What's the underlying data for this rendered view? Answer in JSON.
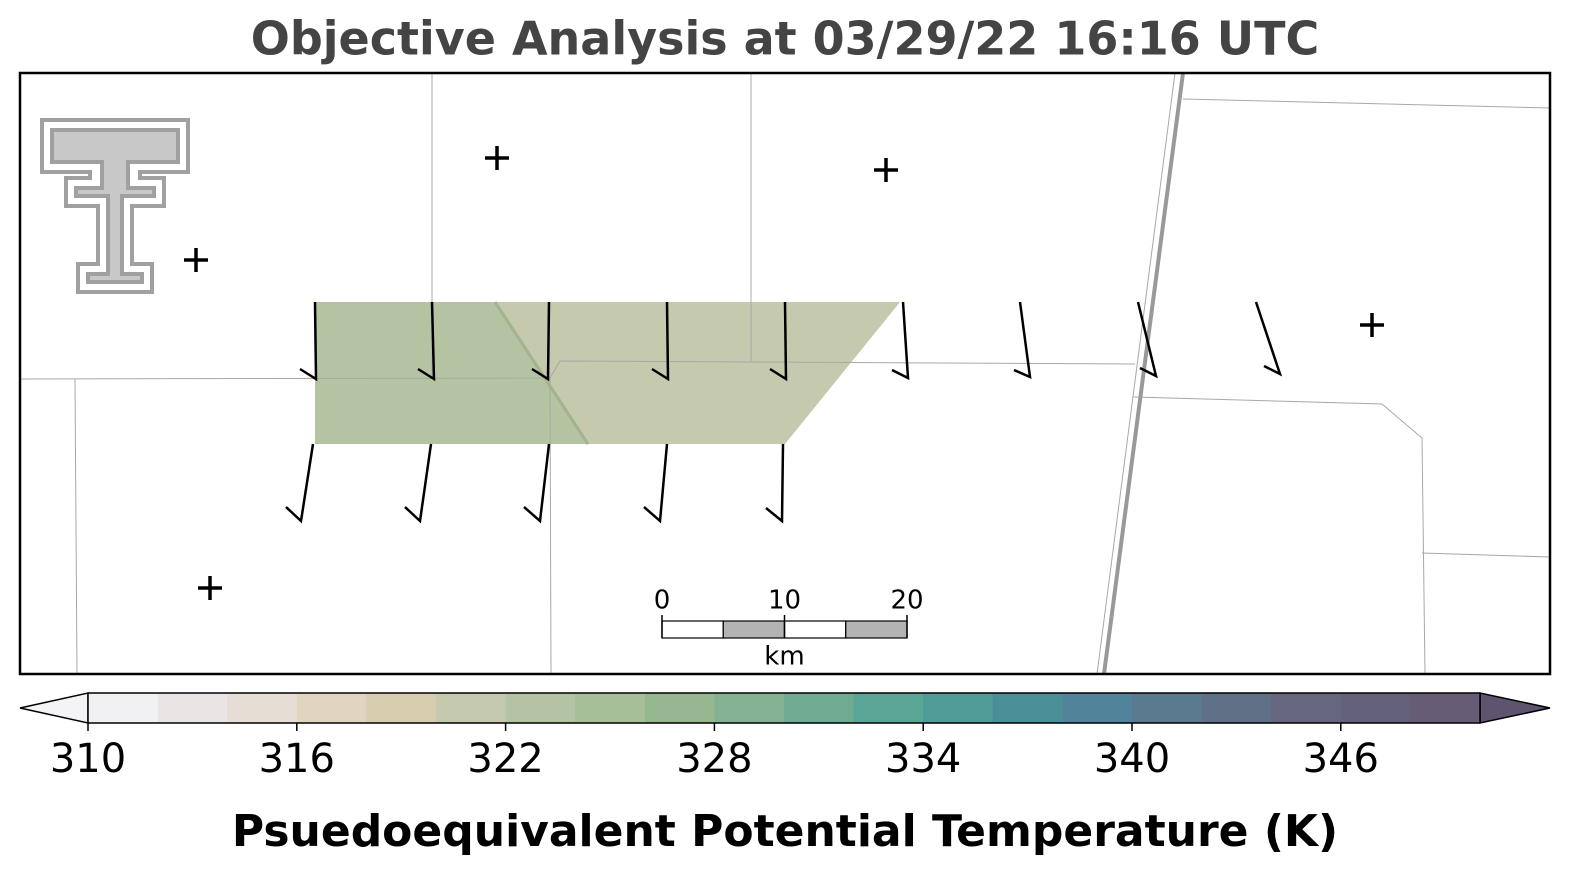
{
  "title": "Objective Analysis at 03/29/22 16:16 UTC",
  "colorbar": {
    "label": "Psuedoequivalent Potential Temperature (K)",
    "lim": [
      310,
      350
    ],
    "ticks": [
      310,
      316,
      322,
      328,
      334,
      340,
      346
    ],
    "levels": [
      310,
      312,
      314,
      316,
      318,
      320,
      322,
      324,
      326,
      328,
      330,
      332,
      334,
      336,
      338,
      340,
      342,
      344,
      346,
      348,
      350
    ],
    "colors": [
      "#f1f0f3",
      "#e9e5e4",
      "#e6ddd5",
      "#e2d5c0",
      "#d5cdae",
      "#c5c9ad",
      "#b4c4a2",
      "#a6bf98",
      "#96b891",
      "#84b293",
      "#6fab93",
      "#5aa596",
      "#4e9b98",
      "#4a8f98",
      "#51839b",
      "#5a7a90",
      "#607087",
      "#66677f",
      "#64617a",
      "#665c75"
    ],
    "under_color": "#f4f3f7",
    "over_color": "#5e5470"
  },
  "scale_bar": {
    "lim": [
      0,
      20
    ],
    "ticks": [
      0,
      10,
      20
    ],
    "unit": "km"
  }
}
